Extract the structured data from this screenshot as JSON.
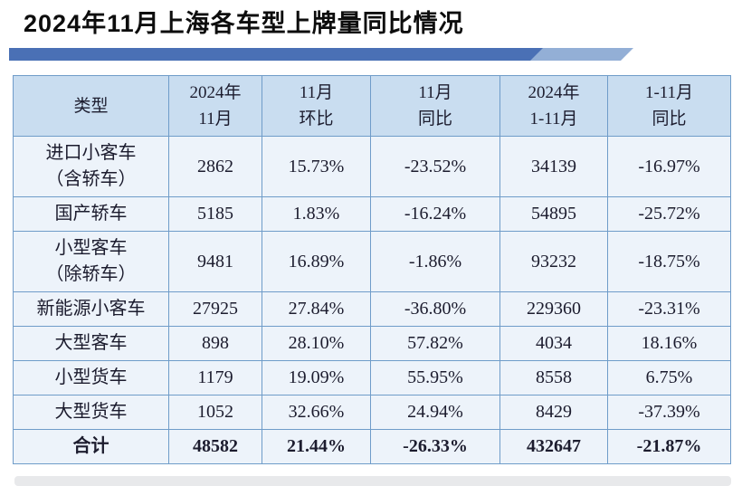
{
  "title": "2024年11月上海各车型上牌量同比情况",
  "decor": {
    "dark_color": "#4a70b5",
    "light_color": "#93afd6"
  },
  "table": {
    "columns": [
      "类型",
      "2024年\n11月",
      "11月\n环比",
      "11月\n同比",
      "2024年\n1-11月",
      "1-11月\n同比"
    ],
    "rows": [
      [
        "进口小客车\n（含轿车）",
        "2862",
        "15.73%",
        "-23.52%",
        "34139",
        "-16.97%"
      ],
      [
        "国产轿车",
        "5185",
        "1.83%",
        "-16.24%",
        "54895",
        "-25.72%"
      ],
      [
        "小型客车\n（除轿车）",
        "9481",
        "16.89%",
        "-1.86%",
        "93232",
        "-18.75%"
      ],
      [
        "新能源小客车",
        "27925",
        "27.84%",
        "-36.80%",
        "229360",
        "-23.31%"
      ],
      [
        "大型客车",
        "898",
        "28.10%",
        "57.82%",
        "4034",
        "18.16%"
      ],
      [
        "小型货车",
        "1179",
        "19.09%",
        "55.95%",
        "8558",
        "6.75%"
      ],
      [
        "大型货车",
        "1052",
        "32.66%",
        "24.94%",
        "8429",
        "-37.39%"
      ],
      [
        "合计",
        "48582",
        "21.44%",
        "-26.33%",
        "432647",
        "-21.87%"
      ]
    ]
  },
  "chart_data": {
    "type": "table",
    "title": "2024年11月上海各车型上牌量同比情况",
    "columns": [
      "类型",
      "2024年11月",
      "11月环比",
      "11月同比",
      "2024年1-11月",
      "1-11月同比"
    ],
    "categories": [
      "进口小客车（含轿车）",
      "国产轿车",
      "小型客车（除轿车）",
      "新能源小客车",
      "大型客车",
      "小型货车",
      "大型货车",
      "合计"
    ],
    "series": [
      {
        "name": "2024年11月",
        "values": [
          2862,
          5185,
          9481,
          27925,
          898,
          1179,
          1052,
          48582
        ]
      },
      {
        "name": "11月环比",
        "values": [
          "15.73%",
          "1.83%",
          "16.89%",
          "27.84%",
          "28.10%",
          "19.09%",
          "32.66%",
          "21.44%"
        ]
      },
      {
        "name": "11月同比",
        "values": [
          "-23.52%",
          "-16.24%",
          "-1.86%",
          "-36.80%",
          "57.82%",
          "55.95%",
          "24.94%",
          "-26.33%"
        ]
      },
      {
        "name": "2024年1-11月",
        "values": [
          34139,
          54895,
          93232,
          229360,
          4034,
          8558,
          8429,
          432647
        ]
      },
      {
        "name": "1-11月同比",
        "values": [
          "-16.97%",
          "-25.72%",
          "-18.75%",
          "-23.31%",
          "18.16%",
          "6.75%",
          "-37.39%",
          "-21.87%"
        ]
      }
    ]
  }
}
